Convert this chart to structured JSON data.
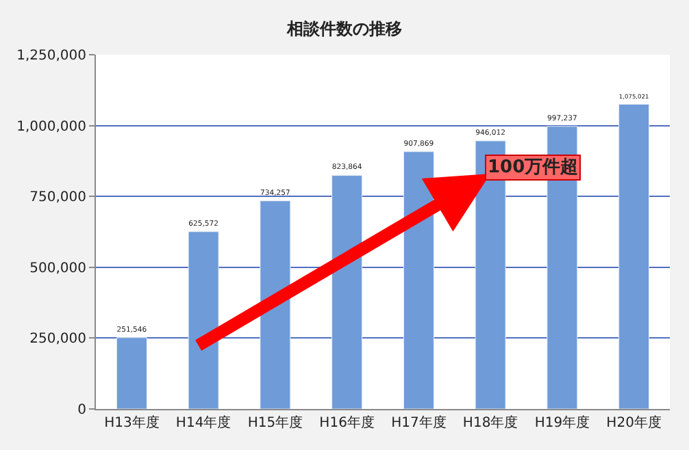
{
  "chart_data": {
    "type": "bar",
    "title": "相談件数の推移",
    "categories": [
      "H13年度",
      "H14年度",
      "H15年度",
      "H16年度",
      "H17年度",
      "H18年度",
      "H19年度",
      "H20年度"
    ],
    "values": [
      251546,
      625572,
      734257,
      823864,
      907869,
      946012,
      997237,
      1075021
    ],
    "color": "#6f9bd8",
    "ylim": [
      0,
      1250000
    ],
    "yticks": [
      {
        "value": 0,
        "label": "0"
      },
      {
        "value": 250000,
        "label": "250,000"
      },
      {
        "value": 500000,
        "label": "500,000"
      },
      {
        "value": 750000,
        "label": "750,000"
      },
      {
        "value": 1000000,
        "label": "1,000,000"
      },
      {
        "value": 1250000,
        "label": "1,250,000"
      }
    ],
    "value_labels": [
      "251,546",
      "625,572",
      "734,257",
      "823,864",
      "907,869",
      "946,012",
      "997,237",
      "1,075,021"
    ],
    "grid": "y",
    "annotations": [
      "100万件超"
    ]
  }
}
